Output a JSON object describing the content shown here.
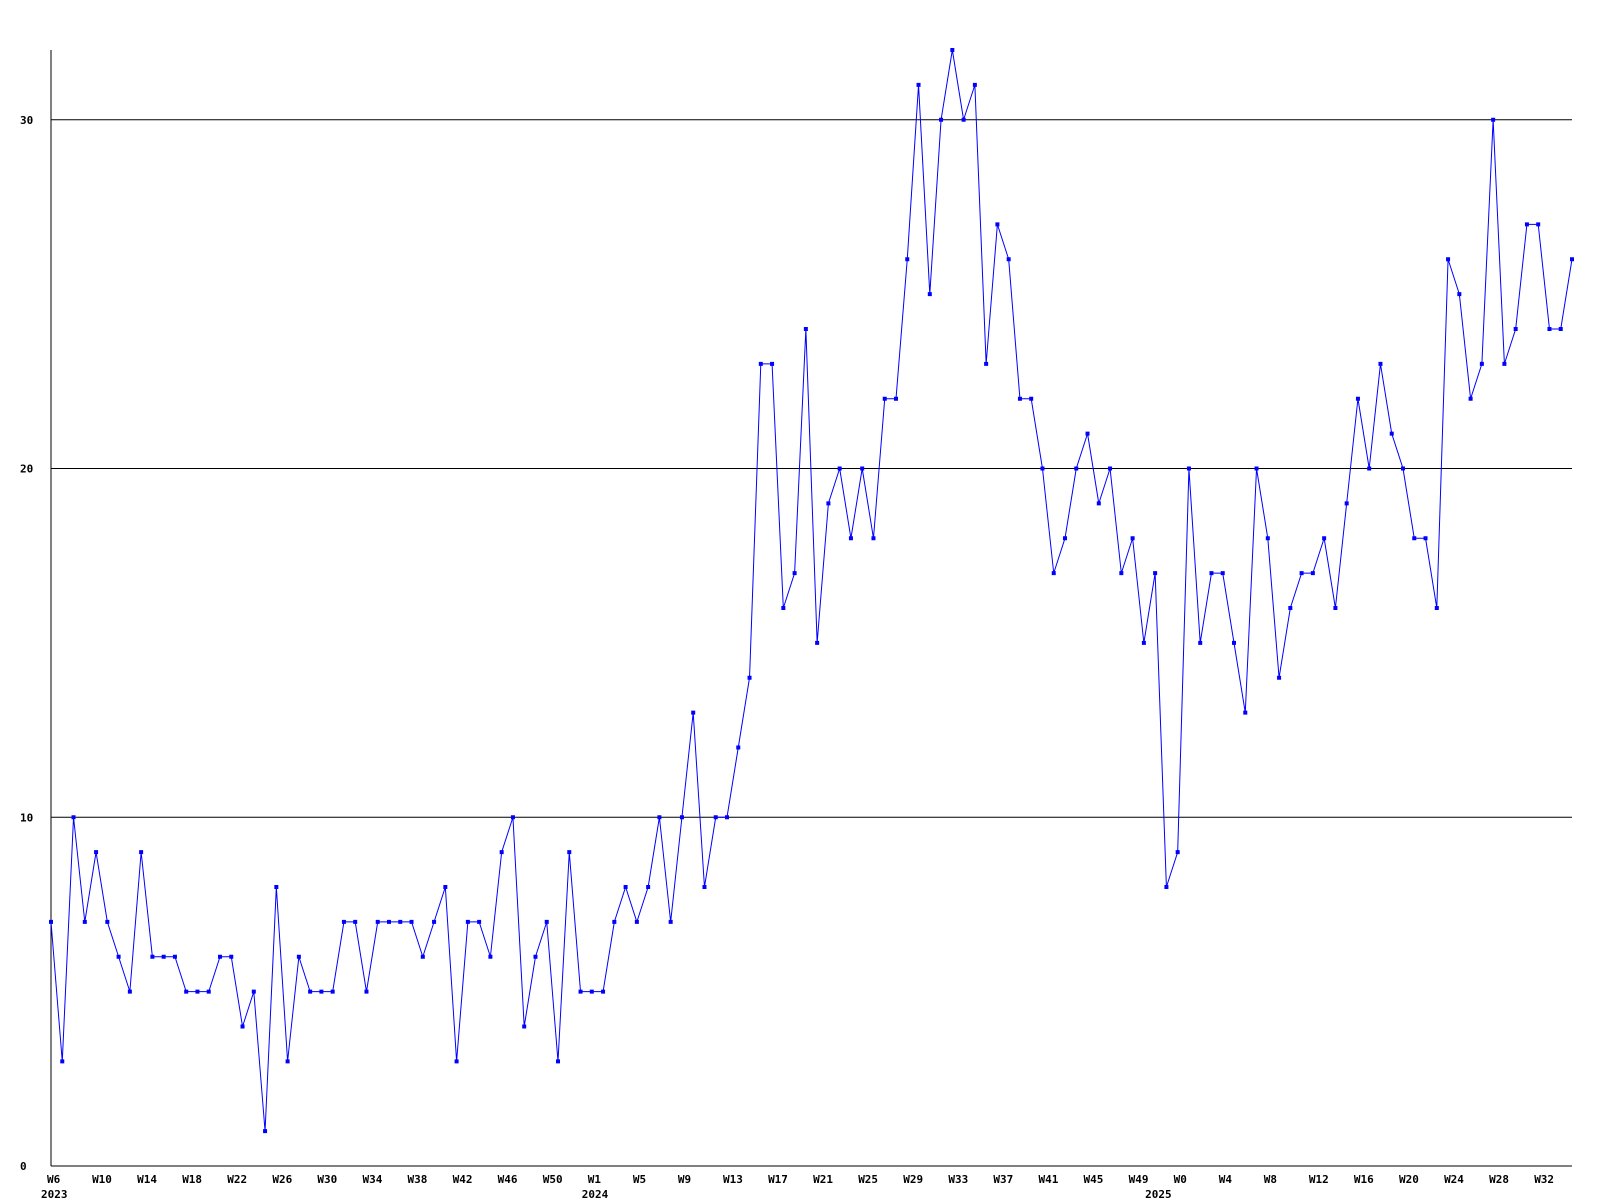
{
  "chart_data": {
    "type": "line",
    "categories": [
      "W6",
      null,
      null,
      null,
      "W10",
      null,
      null,
      null,
      "W14",
      null,
      null,
      null,
      "W18",
      null,
      null,
      null,
      "W22",
      null,
      null,
      null,
      "W26",
      null,
      null,
      null,
      "W30",
      null,
      null,
      null,
      "W34",
      null,
      null,
      null,
      "W38",
      null,
      null,
      null,
      "W42",
      null,
      null,
      null,
      "W46",
      null,
      null,
      null,
      "W50",
      null,
      null,
      null,
      "W1",
      null,
      null,
      null,
      "W5",
      null,
      null,
      null,
      "W9",
      null,
      null,
      null,
      "W13",
      null,
      null,
      null,
      "W17",
      null,
      null,
      null,
      "W21",
      null,
      null,
      null,
      "W25",
      null,
      null,
      null,
      "W29",
      null,
      null,
      null,
      "W33",
      null,
      null,
      null,
      "W37",
      null,
      null,
      null,
      "W41",
      null,
      null,
      null,
      "W45",
      null,
      null,
      null,
      "W49",
      null,
      null,
      null,
      "W0",
      null,
      null,
      null,
      "W4",
      null,
      null,
      null,
      "W8",
      null,
      null,
      null,
      "W12",
      null,
      null,
      null,
      "W16",
      null,
      null,
      null,
      "W20",
      null,
      null,
      null,
      "W24",
      null,
      null,
      null,
      "W28",
      null,
      null,
      null,
      "W32",
      null,
      null,
      null
    ],
    "category_years": [
      "2023",
      null,
      null,
      null,
      null,
      null,
      null,
      null,
      null,
      null,
      null,
      null,
      null,
      null,
      null,
      null,
      null,
      null,
      null,
      null,
      null,
      null,
      null,
      null,
      null,
      null,
      null,
      null,
      null,
      null,
      null,
      null,
      null,
      null,
      null,
      null,
      null,
      null,
      null,
      null,
      null,
      null,
      null,
      null,
      null,
      null,
      null,
      null,
      "2024",
      null,
      null,
      null,
      null,
      null,
      null,
      null,
      null,
      null,
      null,
      null,
      null,
      null,
      null,
      null,
      null,
      null,
      null,
      null,
      null,
      null,
      null,
      null,
      null,
      null,
      null,
      null,
      null,
      null,
      null,
      null,
      null,
      null,
      null,
      null,
      null,
      null,
      null,
      null,
      null,
      null,
      null,
      null,
      null,
      null,
      null,
      null,
      null,
      null,
      "2025",
      null,
      null,
      null,
      null,
      null,
      null,
      null,
      null,
      null,
      null,
      null,
      null,
      null,
      null,
      null,
      null,
      null,
      null,
      null,
      null,
      null,
      null,
      null,
      null,
      null,
      null,
      null,
      null,
      null,
      null,
      null,
      null,
      null,
      null,
      null
    ],
    "series": [
      {
        "color": "#0000ff",
        "values": [
          7,
          3,
          10,
          7,
          9,
          7,
          6,
          5,
          9,
          6,
          6,
          6,
          5,
          5,
          5,
          6,
          6,
          4,
          5,
          1,
          8,
          3,
          6,
          5,
          5,
          5,
          7,
          7,
          5,
          7,
          7,
          7,
          7,
          6,
          7,
          8,
          3,
          7,
          7,
          6,
          9,
          10,
          4,
          6,
          7,
          3,
          9,
          5,
          5,
          5,
          7,
          8,
          7,
          8,
          10,
          7,
          10,
          13,
          8,
          10,
          10,
          12,
          14,
          23,
          23,
          16,
          17,
          24,
          15,
          19,
          20,
          18,
          20,
          18,
          22,
          22,
          26,
          31,
          25,
          30,
          32,
          30,
          31,
          23,
          27,
          26,
          22,
          22,
          20,
          17,
          18,
          20,
          21,
          19,
          20,
          17,
          18,
          15,
          17,
          8,
          9,
          20,
          15,
          17,
          17,
          15,
          13,
          20,
          18,
          14,
          16,
          17,
          17,
          18,
          16,
          19,
          22,
          20,
          23,
          21,
          20,
          18,
          18,
          16,
          26,
          25,
          22,
          23,
          30,
          23,
          24,
          27,
          27,
          24,
          24,
          26
        ]
      }
    ],
    "ylim": [
      0,
      32
    ],
    "yticks": [
      0,
      10,
      20,
      30
    ],
    "grid": true
  }
}
